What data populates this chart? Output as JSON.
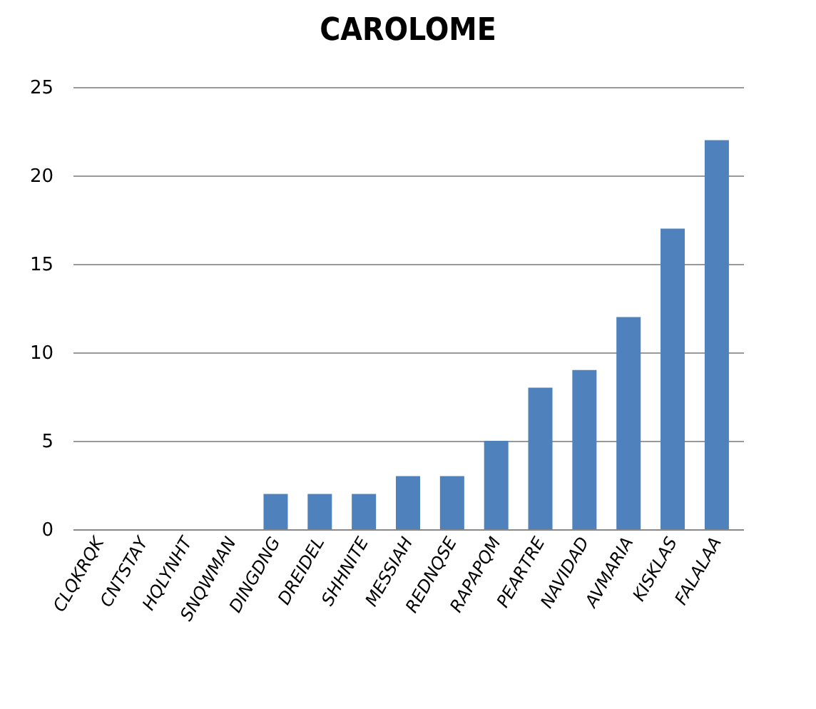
{
  "chart_data": {
    "type": "bar",
    "title": "CAROLOME",
    "categories": [
      "CLQKRQK",
      "CNTSTAY",
      "HQLYNHT",
      "SNQWMAN",
      "DINGDNG",
      "DREIDEL",
      "SHHNITE",
      "MESSIAH",
      "REDNQSE",
      "RAPAPQM",
      "PEARTRE",
      "NAVIDAD",
      "AVMARIA",
      "KISKLAS",
      "FALALAA"
    ],
    "values": [
      0,
      0,
      0,
      0,
      2,
      2,
      2,
      3,
      3,
      5,
      8,
      9,
      12,
      17,
      22
    ],
    "color": "#4f81bd",
    "ylim": [
      0,
      25
    ],
    "yticks": [
      0,
      5,
      10,
      15,
      20,
      25
    ],
    "grid": "y"
  }
}
